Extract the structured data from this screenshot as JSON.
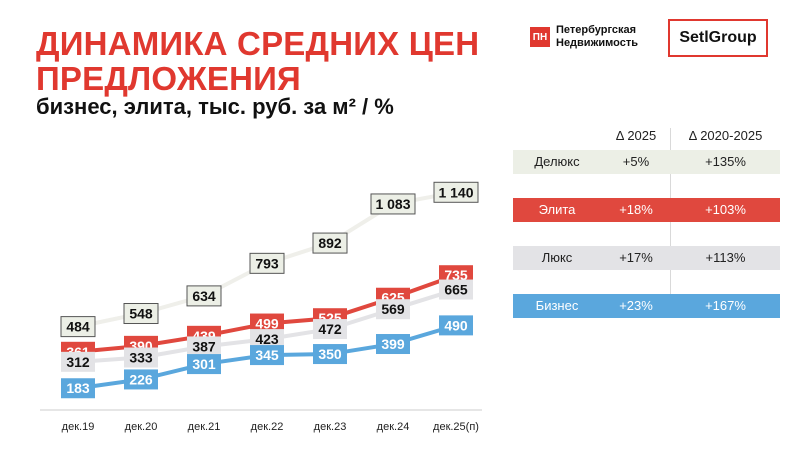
{
  "header": {
    "title_line1": "ДИНАМИКА СРЕДНИХ ЦЕН",
    "title_line2": "ПРЕДЛОЖЕНИЯ",
    "subtitle": "бизнес, элита, тыс. руб. за м² / %"
  },
  "logos": {
    "pn_mark": "ПН",
    "pn_line1": "Петербургская",
    "pn_line2": "Недвижимость",
    "setl": "SetlGroup"
  },
  "colors": {
    "accent": "#e0382f",
    "deluxe": "#ecefe6",
    "elite": "#e0483e",
    "lux": "#e3e3e6",
    "business": "#5aa7dd"
  },
  "chart_data": {
    "type": "line",
    "title": "Динамика средних цен предложения",
    "ylabel": "тыс. руб. за м²",
    "categories": [
      "дек.19",
      "дек.20",
      "дек.21",
      "дек.22",
      "дек.23",
      "дек.24",
      "дек.25(п)"
    ],
    "ylim": [
      150,
      1200
    ],
    "series": [
      {
        "name": "Делюкс",
        "values": [
          484,
          548,
          634,
          793,
          892,
          1083,
          1140
        ],
        "labels": [
          "484",
          "548",
          "634",
          "793",
          "892",
          "1 083",
          "1 140"
        ]
      },
      {
        "name": "Элита",
        "values": [
          361,
          390,
          439,
          499,
          525,
          625,
          735
        ],
        "labels": [
          "361",
          "390",
          "439",
          "499",
          "525",
          "625",
          "735"
        ]
      },
      {
        "name": "Люкс",
        "values": [
          312,
          333,
          387,
          423,
          472,
          569,
          665
        ],
        "labels": [
          "312",
          "333",
          "387",
          "423",
          "472",
          "569",
          "665"
        ]
      },
      {
        "name": "Бизнес",
        "values": [
          183,
          226,
          301,
          345,
          350,
          399,
          490
        ],
        "labels": [
          "183",
          "226",
          "301",
          "345",
          "350",
          "399",
          "490"
        ]
      }
    ]
  },
  "table": {
    "col1": "Δ 2025",
    "col2": "Δ 2020-2025",
    "rows": [
      {
        "name": "Делюкс",
        "d2025": "+5%",
        "d2020_2025": "+135%"
      },
      {
        "name": "Элита",
        "d2025": "+18%",
        "d2020_2025": "+103%"
      },
      {
        "name": "Люкс",
        "d2025": "+17%",
        "d2020_2025": "+113%"
      },
      {
        "name": "Бизнес",
        "d2025": "+23%",
        "d2020_2025": "+167%"
      }
    ]
  }
}
